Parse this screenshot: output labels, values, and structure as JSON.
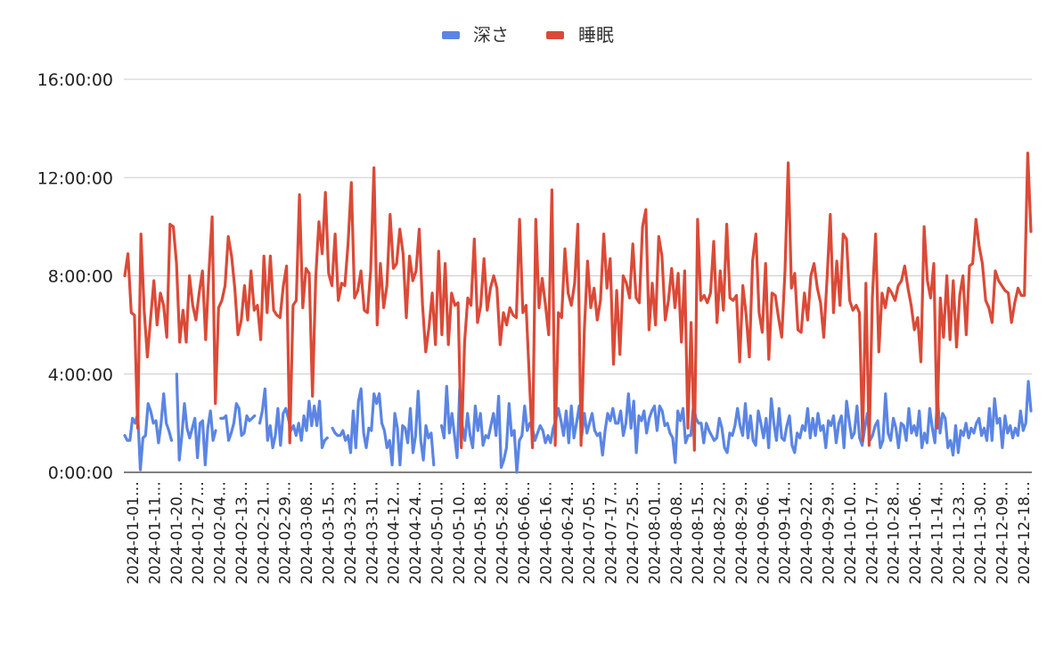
{
  "chart_data": {
    "type": "line",
    "title": "",
    "xlabel": "",
    "ylabel": "",
    "legend_position": "top-center",
    "grid": true,
    "ylim_hours": [
      0,
      16
    ],
    "y_tick_labels": [
      "0:00:00",
      "4:00:00",
      "8:00:00",
      "12:00:00",
      "16:00:00"
    ],
    "y_tick_values_hours": [
      0,
      4,
      8,
      12,
      16
    ],
    "x_range": [
      "2024-01-01",
      "2024-12-26"
    ],
    "x_tick_labels": [
      "2024-01-01…",
      "2024-01-11…",
      "2024-01-20…",
      "2024-01-27…",
      "2024-02-04…",
      "2024-02-13…",
      "2024-02-21…",
      "2024-02-29…",
      "2024-03-08…",
      "2024-03-15…",
      "2024-03-23…",
      "2024-03-31…",
      "2024-04-12…",
      "2024-04-24…",
      "2024-05-01…",
      "2024-05-10…",
      "2024-05-18…",
      "2024-05-28…",
      "2024-06-06…",
      "2024-06-16…",
      "2024-06-24…",
      "2024-07-05…",
      "2024-07-17…",
      "2024-07-25…",
      "2024-08-01…",
      "2024-08-08…",
      "2024-08-15…",
      "2024-08-22…",
      "2024-08-29…",
      "2024-09-06…",
      "2024-09-14…",
      "2024-09-22…",
      "2024-09-29…",
      "2024-10-10…",
      "2024-10-17…",
      "2024-10-28…",
      "2024-11-06…",
      "2024-11-14…",
      "2024-11-23…",
      "2024-11-30…",
      "2024-12-09…",
      "2024-12-18…"
    ],
    "series": [
      {
        "name": "深さ",
        "color": "#5b85e4",
        "unit": "hours",
        "values": [
          1.5,
          1.3,
          1.3,
          2.2,
          2.0,
          2.4,
          0.1,
          1.4,
          1.5,
          2.8,
          2.5,
          2.0,
          2.1,
          1.2,
          2.0,
          3.2,
          2.0,
          1.7,
          1.3,
          null,
          4.0,
          0.5,
          1.5,
          2.8,
          1.8,
          1.4,
          1.8,
          2.2,
          0.6,
          2.0,
          2.1,
          0.3,
          1.8,
          2.5,
          1.3,
          1.7,
          null,
          2.2,
          2.2,
          2.3,
          1.3,
          1.6,
          2.0,
          2.8,
          2.6,
          1.5,
          1.6,
          2.3,
          2.1,
          2.2,
          2.3,
          null,
          2.0,
          2.5,
          3.4,
          1.3,
          1.9,
          1.0,
          1.5,
          2.6,
          1.1,
          2.4,
          2.6,
          2.2,
          1.7,
          1.9,
          1.5,
          2.0,
          1.3,
          2.3,
          1.7,
          2.9,
          1.9,
          2.7,
          1.9,
          2.9,
          1.0,
          1.3,
          1.4,
          null,
          1.8,
          1.6,
          1.5,
          1.5,
          1.7,
          1.3,
          1.5,
          0.8,
          2.5,
          1.0,
          2.9,
          3.4,
          1.6,
          1.0,
          1.8,
          1.7,
          3.2,
          2.8,
          3.2,
          2.0,
          1.7,
          1.0,
          1.3,
          0.3,
          2.4,
          1.8,
          0.3,
          1.9,
          1.8,
          1.2,
          2.6,
          0.8,
          1.5,
          3.3,
          1.3,
          0.5,
          1.9,
          1.4,
          1.6,
          0.3,
          null,
          null,
          1.9,
          1.4,
          3.5,
          1.6,
          2.4,
          1.5,
          0.6,
          3.4,
          1.9,
          1.3,
          2.4,
          1.5,
          1.0,
          2.7,
          1.7,
          2.4,
          1.1,
          1.5,
          1.4,
          1.9,
          2.4,
          1.5,
          3.1,
          0.2,
          0.5,
          1.0,
          2.8,
          1.5,
          1.7,
          0.0,
          1.3,
          1.5,
          2.7,
          1.7,
          2.0,
          1.8,
          1.3,
          1.6,
          1.9,
          1.7,
          1.2,
          1.5,
          1.2,
          1.8,
          2.1,
          2.6,
          2.1,
          1.5,
          2.5,
          1.2,
          2.7,
          1.4,
          2.0,
          2.7,
          1.5,
          2.4,
          1.6,
          2.0,
          2.4,
          1.7,
          1.5,
          1.6,
          0.7,
          1.7,
          2.4,
          2.1,
          2.6,
          2.0,
          2.0,
          2.5,
          1.5,
          2.0,
          3.2,
          1.8,
          2.9,
          0.8,
          2.3,
          2.1,
          2.5,
          1.6,
          2.2,
          2.5,
          2.7,
          1.7,
          2.7,
          2.5,
          1.9,
          2.0,
          1.6,
          1.4,
          0.4,
          2.5,
          2.1,
          2.6,
          1.2,
          1.5,
          1.5,
          2.7,
          2.2,
          2.0,
          2.0,
          1.2,
          2.0,
          1.7,
          1.5,
          1.3,
          1.4,
          2.2,
          1.8,
          1.0,
          0.8,
          1.6,
          1.5,
          1.9,
          2.6,
          1.9,
          1.5,
          2.8,
          1.4,
          2.3,
          1.3,
          1.1,
          2.5,
          2.0,
          1.4,
          2.2,
          1.0,
          3.0,
          2.0,
          1.3,
          2.6,
          1.4,
          1.3,
          1.9,
          2.3,
          1.1,
          0.8,
          1.6,
          1.4,
          1.9,
          1.7,
          2.6,
          1.4,
          2.2,
          1.5,
          2.4,
          1.7,
          1.9,
          1.0,
          2.1,
          1.9,
          2.3,
          1.2,
          2.0,
          2.3,
          1.0,
          2.9,
          2.1,
          1.4,
          1.6,
          2.7,
          1.4,
          1.1,
          1.8,
          2.4,
          1.3,
          1.5,
          1.9,
          2.1,
          1.0,
          1.3,
          3.2,
          1.6,
          1.3,
          2.2,
          1.8,
          1.0,
          2.0,
          1.9,
          1.3,
          2.6,
          1.6,
          1.9,
          1.5,
          2.5,
          1.0,
          1.6,
          1.2,
          2.6,
          1.8,
          1.2,
          3.1,
          1.6,
          2.4,
          2.2,
          1.0,
          1.3,
          0.7,
          1.9,
          0.8,
          1.7,
          1.5,
          2.0,
          1.4,
          1.8,
          1.6,
          2.0,
          2.2,
          1.5,
          1.8,
          1.3,
          2.6,
          1.3,
          3.0,
          2.0,
          2.2,
          1.0,
          2.3,
          1.6,
          1.9,
          1.4,
          1.8,
          1.5,
          2.5,
          1.7,
          2.0,
          3.7,
          2.5
        ]
      },
      {
        "name": "睡眠",
        "color": "#db4a37",
        "unit": "hours",
        "values": [
          8.0,
          8.9,
          6.5,
          6.4,
          1.8,
          9.7,
          6.6,
          4.7,
          6.3,
          7.8,
          6.0,
          7.3,
          6.8,
          5.5,
          10.1,
          10.0,
          8.5,
          5.3,
          6.6,
          5.3,
          8.0,
          6.8,
          6.2,
          7.3,
          8.2,
          5.4,
          8.1,
          10.4,
          2.8,
          6.7,
          7.0,
          7.6,
          9.6,
          8.8,
          7.5,
          5.6,
          6.2,
          7.6,
          6.2,
          8.2,
          6.6,
          6.8,
          5.4,
          8.8,
          6.5,
          8.8,
          6.6,
          6.4,
          6.3,
          7.6,
          8.4,
          1.2,
          6.8,
          7.0,
          11.3,
          6.7,
          8.3,
          8.1,
          3.1,
          7.9,
          10.2,
          8.9,
          11.4,
          8.1,
          7.6,
          9.7,
          7.0,
          7.7,
          7.6,
          9.3,
          11.8,
          7.1,
          7.4,
          8.2,
          6.6,
          6.5,
          8.2,
          12.4,
          6.0,
          8.5,
          6.7,
          7.6,
          10.5,
          8.3,
          8.5,
          9.9,
          8.9,
          6.3,
          8.8,
          7.8,
          8.2,
          9.9,
          6.8,
          4.9,
          5.9,
          7.3,
          5.2,
          9.0,
          5.6,
          8.5,
          5.2,
          7.3,
          6.8,
          6.9,
          1.0,
          5.3,
          7.1,
          6.8,
          9.5,
          6.1,
          6.8,
          8.7,
          6.6,
          7.5,
          8.0,
          7.5,
          5.2,
          6.5,
          6.0,
          6.7,
          6.4,
          6.3,
          10.3,
          6.5,
          6.8,
          3.9,
          1.0,
          10.3,
          6.7,
          7.9,
          6.8,
          5.6,
          11.5,
          1.1,
          6.5,
          6.3,
          9.1,
          7.3,
          6.8,
          7.7,
          10.1,
          1.1,
          5.8,
          8.6,
          6.7,
          7.5,
          6.2,
          7.0,
          9.7,
          7.5,
          8.7,
          4.4,
          7.4,
          4.8,
          8.0,
          7.7,
          7.1,
          9.3,
          7.1,
          6.9,
          10.0,
          10.7,
          5.8,
          7.7,
          6.0,
          9.6,
          8.8,
          6.2,
          7.0,
          8.3,
          6.7,
          8.1,
          5.3,
          8.2,
          1.8,
          6.1,
          0.9,
          10.3,
          7.0,
          7.2,
          6.9,
          7.3,
          9.4,
          6.1,
          8.2,
          6.6,
          10.1,
          7.1,
          7.0,
          7.2,
          4.5,
          7.6,
          6.4,
          4.7,
          8.6,
          9.7,
          6.5,
          5.7,
          8.5,
          4.6,
          7.3,
          7.2,
          6.3,
          5.5,
          8.2,
          12.6,
          7.5,
          8.1,
          5.8,
          5.7,
          7.3,
          6.2,
          8.0,
          8.5,
          7.5,
          6.9,
          5.5,
          7.9,
          10.5,
          6.5,
          8.6,
          6.8,
          9.7,
          9.5,
          7.0,
          6.6,
          6.8,
          6.5,
          1.3,
          7.7,
          1.1,
          7.1,
          9.7,
          4.9,
          7.3,
          6.7,
          7.5,
          7.3,
          7.0,
          7.6,
          7.8,
          8.4,
          7.5,
          6.8,
          5.8,
          6.3,
          4.5,
          10.0,
          7.8,
          7.1,
          8.5,
          1.8,
          7.1,
          5.5,
          8.0,
          5.4,
          7.8,
          5.1,
          7.2,
          8.0,
          5.6,
          8.4,
          8.5,
          10.3,
          9.2,
          8.5,
          7.0,
          6.7,
          6.1,
          8.2,
          7.8,
          7.6,
          7.4,
          7.3,
          6.1,
          6.9,
          7.5,
          7.2,
          7.2,
          13.0,
          9.8
        ]
      }
    ]
  }
}
